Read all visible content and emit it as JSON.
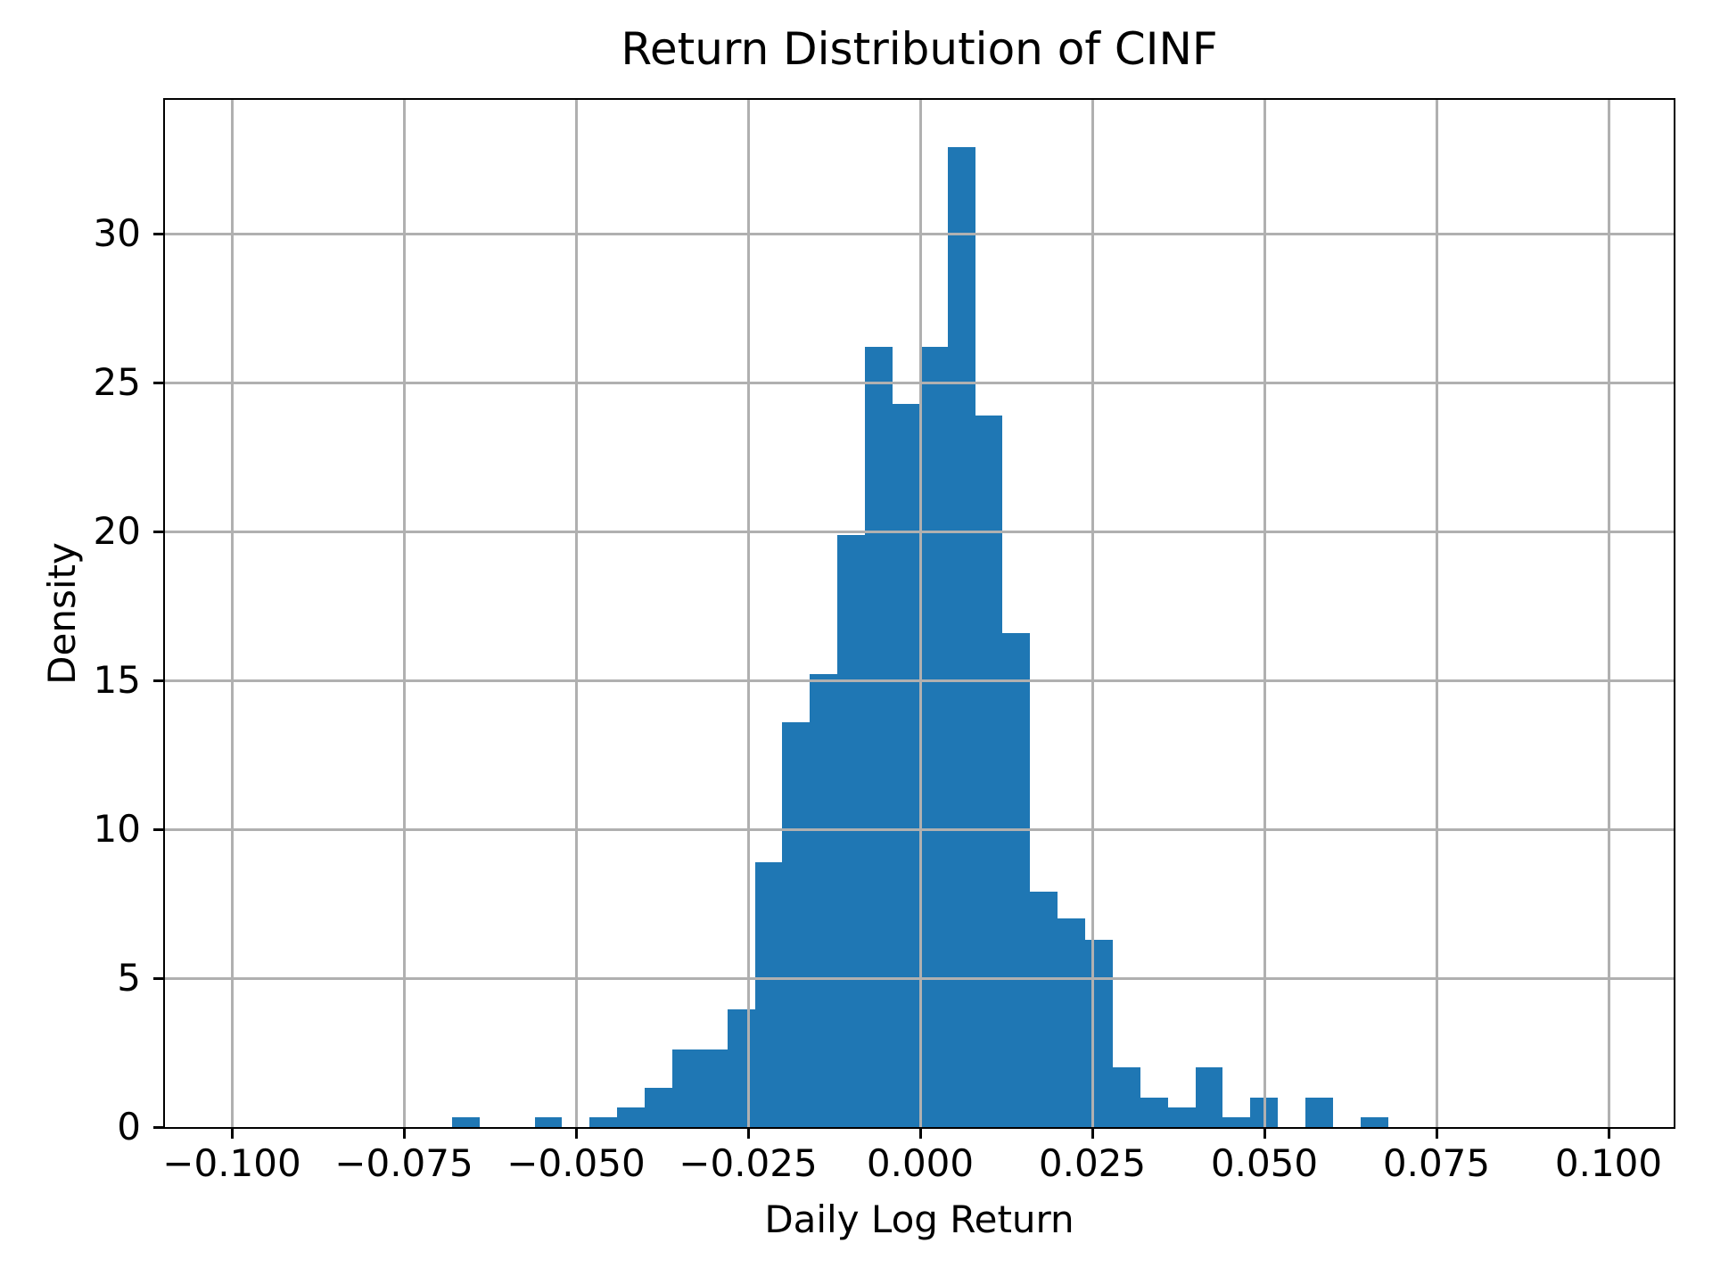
{
  "figure": {
    "title": "Return Distribution of CINF",
    "xlabel": "Daily Log Return",
    "ylabel": "Density"
  },
  "chart_data": {
    "type": "bar",
    "subtype": "histogram",
    "title": "Return Distribution of CINF",
    "xlabel": "Daily Log Return",
    "ylabel": "Density",
    "bin_width": 0.004,
    "bin_edges": [
      -0.068,
      -0.064,
      -0.06,
      -0.056,
      -0.052,
      -0.048,
      -0.044,
      -0.04,
      -0.036,
      -0.032,
      -0.028,
      -0.024,
      -0.02,
      -0.016,
      -0.012,
      -0.008,
      -0.004,
      0.0,
      0.004,
      0.008,
      0.012,
      0.016,
      0.02,
      0.024,
      0.028,
      0.032,
      0.036,
      0.04,
      0.044,
      0.048,
      0.052,
      0.056,
      0.06,
      0.064,
      0.068
    ],
    "densities": [
      0.33,
      0,
      0,
      0.33,
      0,
      0.33,
      0.66,
      1.32,
      2.6,
      2.6,
      3.95,
      8.9,
      13.6,
      15.2,
      19.9,
      26.2,
      24.3,
      26.2,
      32.9,
      23.9,
      16.6,
      7.9,
      7.0,
      6.3,
      2.0,
      1.0,
      0.66,
      2.0,
      0.33,
      1.0,
      0,
      1.0,
      0,
      0.33
    ],
    "xlim": [
      -0.1097,
      0.1095
    ],
    "ylim": [
      0,
      34.5
    ],
    "xticks": [
      -0.1,
      -0.075,
      -0.05,
      -0.025,
      0.0,
      0.025,
      0.05,
      0.075,
      0.1
    ],
    "xtick_labels": [
      "−0.100",
      "−0.075",
      "−0.050",
      "−0.025",
      "0.000",
      "0.025",
      "0.050",
      "0.075",
      "0.100"
    ],
    "yticks": [
      0,
      5,
      10,
      15,
      20,
      25,
      30
    ],
    "ytick_labels": [
      "0",
      "5",
      "10",
      "15",
      "20",
      "25",
      "30"
    ],
    "grid": true,
    "grid_above_bars": true,
    "legend": null,
    "bar_color": "#1f77b4",
    "grid_color": "#b0b0b0",
    "spine_color": "#000000",
    "text_color": "#000000",
    "background_color": "#ffffff"
  }
}
